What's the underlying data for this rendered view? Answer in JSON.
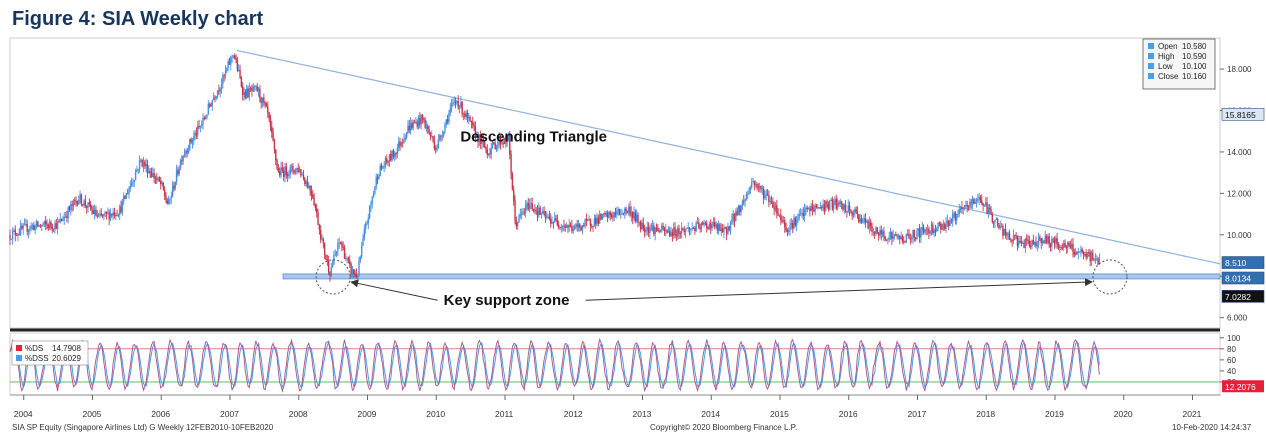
{
  "figure_title": "Figure 4: SIA Weekly chart",
  "footer": {
    "left": "SIA SP Equity (Singapore Airlines Ltd) G  Weekly 12FEB2010-10FEB2020",
    "center": "Copyright© 2020 Bloomberg Finance L.P.",
    "right": "10-Feb-2020 14:24:37"
  },
  "chart_data": [
    {
      "type": "candlestick",
      "title": "",
      "x_ticks": [
        "2004",
        "2005",
        "2006",
        "2007",
        "2008",
        "2009",
        "2010",
        "2011",
        "2012",
        "2013",
        "2014",
        "2015",
        "2016",
        "2017",
        "2018",
        "2019",
        "2020",
        "2021"
      ],
      "x_range": [
        2003.8,
        2021.4
      ],
      "y_ticks": [
        "6.000",
        "8.000",
        "10.000",
        "12.000",
        "14.000",
        "16.000",
        "18.000"
      ],
      "y_range": [
        5.5,
        19.5
      ],
      "price_path": [
        [
          2003.8,
          10.0
        ],
        [
          2004.1,
          10.4
        ],
        [
          2004.5,
          10.5
        ],
        [
          2004.8,
          11.8
        ],
        [
          2005.1,
          10.8
        ],
        [
          2005.4,
          11.2
        ],
        [
          2005.7,
          13.6
        ],
        [
          2006.0,
          12.4
        ],
        [
          2006.1,
          11.4
        ],
        [
          2006.3,
          13.8
        ],
        [
          2006.6,
          15.4
        ],
        [
          2006.75,
          16.6
        ],
        [
          2006.9,
          17.5
        ],
        [
          2007.05,
          18.8
        ],
        [
          2007.2,
          16.8
        ],
        [
          2007.4,
          17.0
        ],
        [
          2007.55,
          15.8
        ],
        [
          2007.7,
          13.0
        ],
        [
          2008.0,
          13.2
        ],
        [
          2008.2,
          12.0
        ],
        [
          2008.35,
          9.5
        ],
        [
          2008.45,
          8.2
        ],
        [
          2008.6,
          9.7
        ],
        [
          2008.75,
          8.3
        ],
        [
          2008.85,
          8.0
        ],
        [
          2008.95,
          10.0
        ],
        [
          2009.15,
          13.0
        ],
        [
          2009.4,
          14.0
        ],
        [
          2009.6,
          15.2
        ],
        [
          2009.8,
          15.6
        ],
        [
          2010.0,
          14.2
        ],
        [
          2010.2,
          16.0
        ],
        [
          2010.3,
          16.5
        ],
        [
          2010.55,
          15.0
        ],
        [
          2010.75,
          14.0
        ],
        [
          2010.9,
          14.5
        ],
        [
          2011.05,
          14.6
        ],
        [
          2011.15,
          10.5
        ],
        [
          2011.35,
          11.5
        ],
        [
          2011.6,
          10.8
        ],
        [
          2012.0,
          10.3
        ],
        [
          2012.4,
          10.8
        ],
        [
          2012.8,
          11.2
        ],
        [
          2013.0,
          10.4
        ],
        [
          2013.4,
          10.1
        ],
        [
          2013.7,
          10.3
        ],
        [
          2014.0,
          10.5
        ],
        [
          2014.2,
          10.1
        ],
        [
          2014.5,
          11.8
        ],
        [
          2014.6,
          12.6
        ],
        [
          2014.9,
          11.5
        ],
        [
          2015.1,
          10.3
        ],
        [
          2015.4,
          11.2
        ],
        [
          2015.8,
          11.5
        ],
        [
          2016.1,
          11.0
        ],
        [
          2016.4,
          10.1
        ],
        [
          2016.8,
          9.8
        ],
        [
          2017.1,
          10.2
        ],
        [
          2017.4,
          10.5
        ],
        [
          2017.7,
          11.3
        ],
        [
          2017.9,
          11.8
        ],
        [
          2018.1,
          10.8
        ],
        [
          2018.3,
          9.9
        ],
        [
          2018.6,
          9.5
        ],
        [
          2018.8,
          9.8
        ],
        [
          2019.0,
          9.6
        ],
        [
          2019.2,
          9.4
        ],
        [
          2019.4,
          9.0
        ],
        [
          2019.55,
          8.9
        ],
        [
          2019.65,
          8.7
        ]
      ],
      "last_price": {
        "label": "8.510",
        "value": 8.51,
        "color": "#2f6fb2"
      },
      "support_level": {
        "label": "8.0134",
        "value": 8.0134,
        "color": "#2f6fb2"
      },
      "high_marker": {
        "label": "15.8165",
        "value": 15.8165
      },
      "low_marker": {
        "label": "7.0282",
        "value": 7.0282
      },
      "legend": [
        {
          "name": "Open",
          "value": "10.580",
          "color": "#4a9de8"
        },
        {
          "name": "High",
          "value": "10.590",
          "color": "#4a9de8"
        },
        {
          "name": "Low",
          "value": "10.100",
          "color": "#4a9de8"
        },
        {
          "name": "Close",
          "value": "10.160",
          "color": "#4a9de8"
        }
      ],
      "trendline": {
        "start": [
          2007.1,
          18.9
        ],
        "end": [
          2021.4,
          8.6
        ]
      },
      "annotations": [
        {
          "text": "Descending Triangle",
          "x": 2010.35,
          "y": 14.5
        },
        {
          "text": "Key support zone",
          "x": 2009.7,
          "y": 6.6
        }
      ],
      "colors": {
        "up": "#4a90e2",
        "down": "#c8334a",
        "trendline": "#8eb4de",
        "support_band": "#a8c8ee"
      }
    },
    {
      "type": "line",
      "title": "",
      "y_ticks": [
        "20",
        "40",
        "60",
        "80",
        "100"
      ],
      "y_range": [
        0,
        105
      ],
      "overbought": 80,
      "oversold": 20,
      "series": [
        {
          "name": "%DS",
          "last_value": "14.7908",
          "color": "#e4203a"
        },
        {
          "name": "%DSS",
          "last_value": "20.6029",
          "color": "#4a9de8"
        }
      ],
      "last_marker": {
        "label": "12.2076",
        "value": 12.2076,
        "color": "#e4203a"
      },
      "grid_lines": {
        "upper_color": "#d9808a",
        "lower_color": "#5fbf5f"
      }
    }
  ]
}
